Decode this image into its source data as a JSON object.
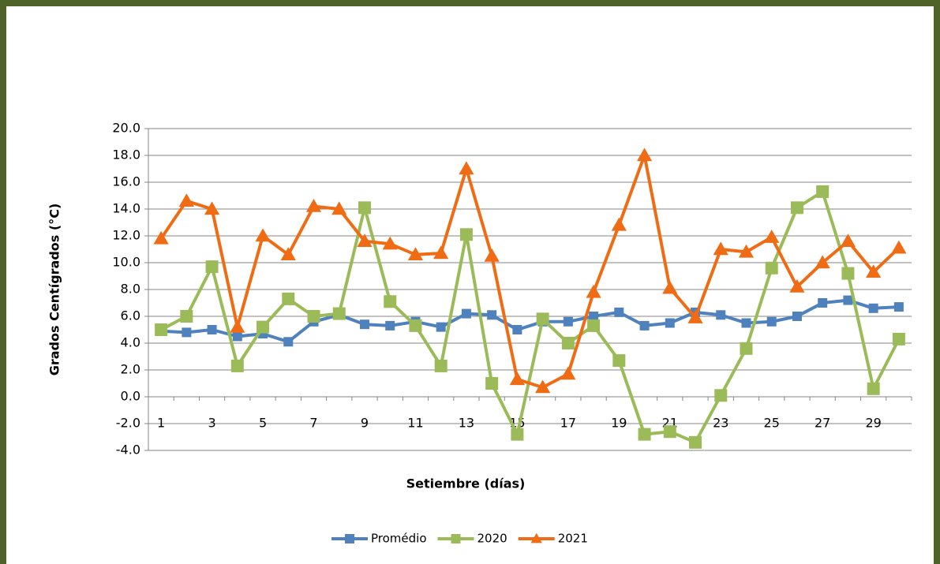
{
  "chart_data": {
    "type": "line",
    "x_label": "Setiembre (días)",
    "y_label": "Grados Centígrados  (°C)",
    "categories": [
      "1",
      null,
      "3",
      null,
      "5",
      null,
      "7",
      null,
      "9",
      null,
      "11",
      null,
      "13",
      null,
      "15",
      null,
      "17",
      null,
      "19",
      null,
      "21",
      null,
      "23",
      null,
      "25",
      null,
      "27",
      null,
      "29",
      null
    ],
    "series": [
      {
        "name": "Promédio",
        "color": "#4f81bd",
        "marker": "square",
        "values": [
          4.9,
          4.8,
          5.0,
          4.5,
          4.7,
          4.1,
          5.6,
          6.1,
          5.4,
          5.3,
          5.6,
          5.2,
          6.2,
          6.1,
          5.0,
          5.6,
          5.6,
          6.0,
          6.3,
          5.3,
          5.5,
          6.3,
          6.1,
          5.5,
          5.6,
          6.0,
          7.0,
          7.2,
          6.6,
          6.7
        ]
      },
      {
        "name": "2020",
        "color": "#9bbb59",
        "marker": "square",
        "values": [
          5.0,
          6.0,
          9.7,
          2.3,
          5.2,
          7.3,
          6.0,
          6.2,
          14.1,
          7.1,
          5.3,
          2.3,
          12.1,
          1.0,
          -2.8,
          5.8,
          4.0,
          5.3,
          2.7,
          -2.8,
          -2.6,
          -3.4,
          0.1,
          3.6,
          9.6,
          14.1,
          15.3,
          9.2,
          0.6,
          4.3
        ]
      },
      {
        "name": "2021",
        "color": "#ef6c14",
        "marker": "triangle",
        "values": [
          11.8,
          14.6,
          14.0,
          5.2,
          12.0,
          10.6,
          14.2,
          14.0,
          11.6,
          11.4,
          10.6,
          10.7,
          17.0,
          10.5,
          1.3,
          0.7,
          1.7,
          7.8,
          12.8,
          18.0,
          8.1,
          5.9,
          11.0,
          10.8,
          11.9,
          8.2,
          10.0,
          11.6,
          9.3,
          11.1
        ]
      }
    ],
    "ylim": [
      -4,
      20
    ],
    "yticks": [
      {
        "value": -4,
        "label": "-4.0"
      },
      {
        "value": -2,
        "label": "-2.0"
      },
      {
        "value": 0,
        "label": "0.0"
      },
      {
        "value": 2,
        "label": "2.0"
      },
      {
        "value": 4,
        "label": "4.0"
      },
      {
        "value": 6,
        "label": "6.0"
      },
      {
        "value": 8,
        "label": "8.0"
      },
      {
        "value": 10,
        "label": "10.0"
      },
      {
        "value": 12,
        "label": "12.0"
      },
      {
        "value": 14,
        "label": "14.0"
      },
      {
        "value": 16,
        "label": "16.0"
      },
      {
        "value": 18,
        "label": "18.0"
      },
      {
        "value": 20,
        "label": "20.0"
      }
    ],
    "grid": true,
    "legend": "bottom"
  }
}
